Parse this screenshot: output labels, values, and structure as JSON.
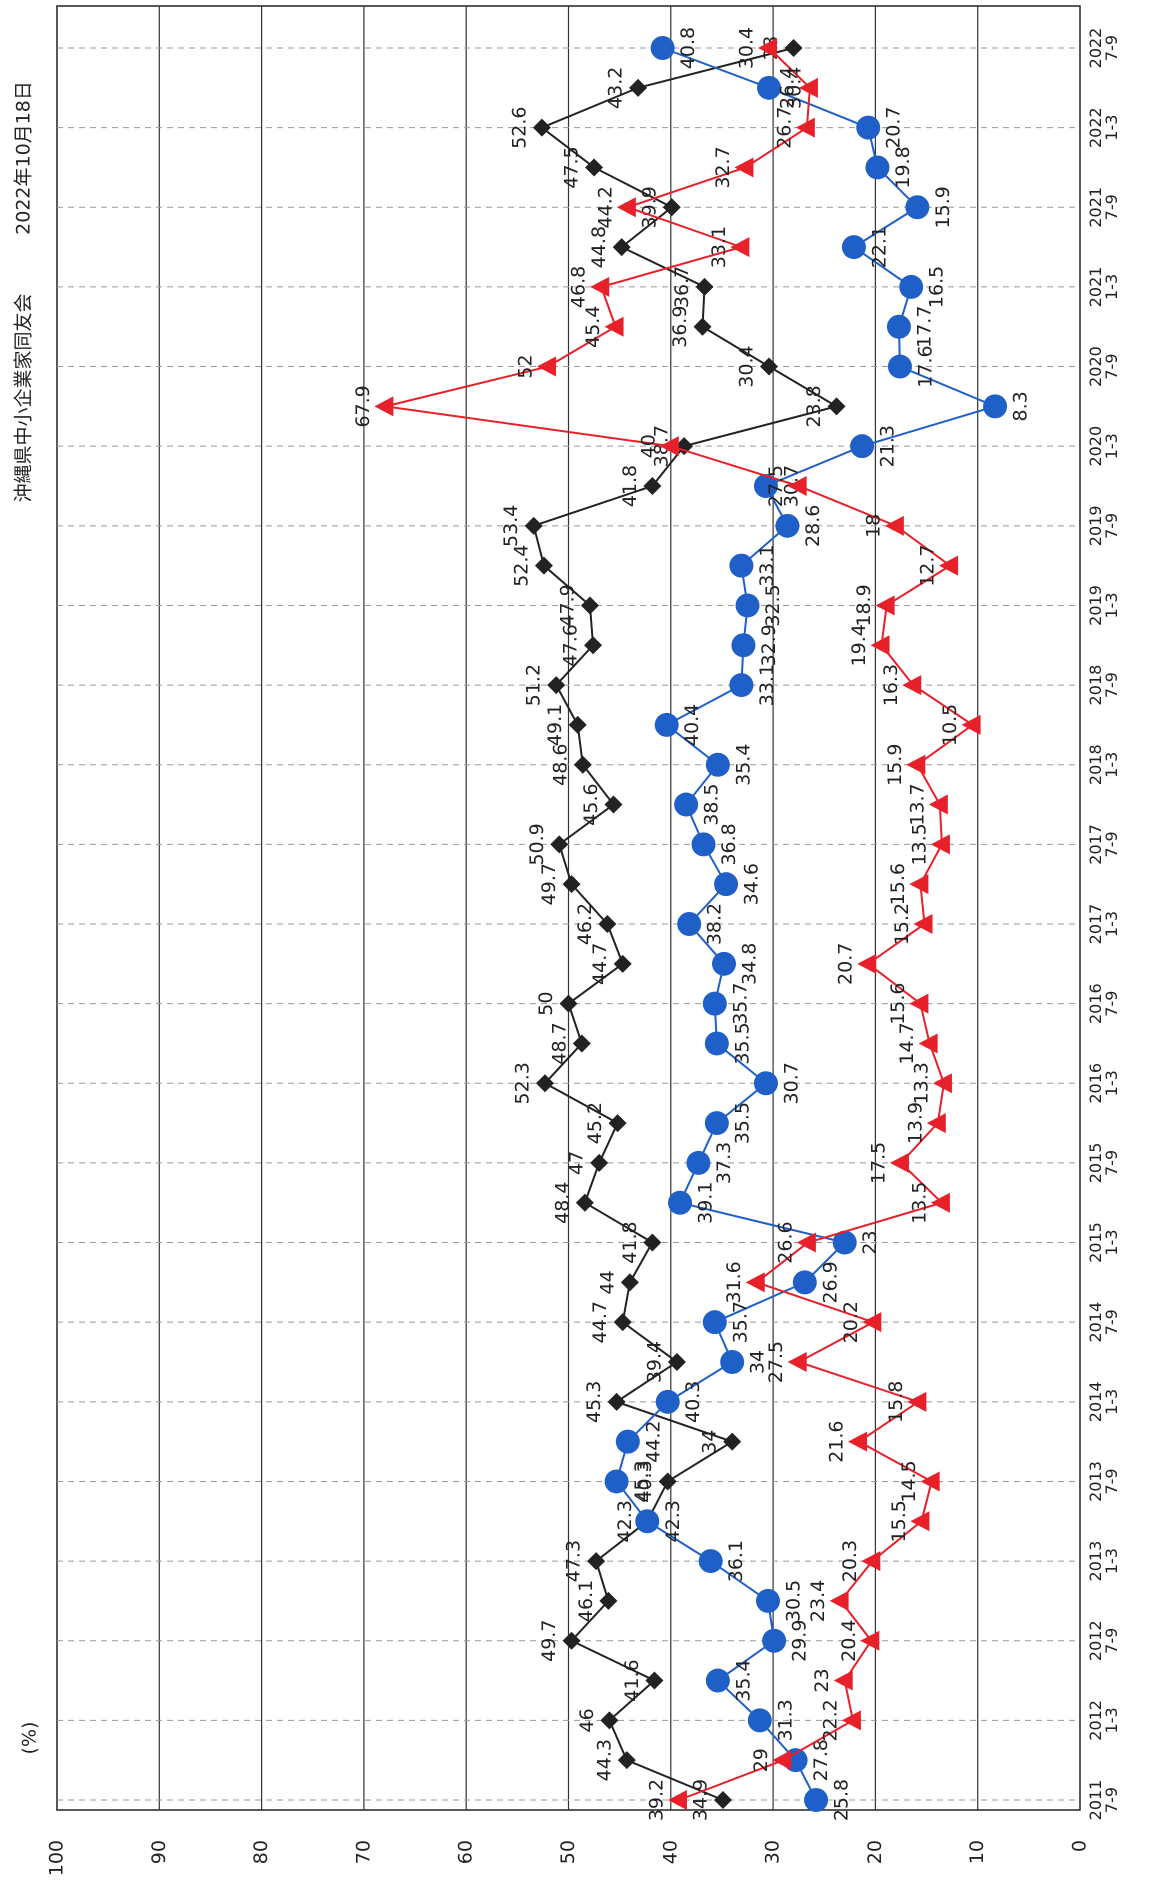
{
  "chart_data": {
    "type": "line",
    "title": "沖縄県中小企業家同友会",
    "subtitle": "2022年10月18日",
    "y_label": "(%)",
    "categories": [
      "2011\n7-9",
      null,
      "2012\n1-3",
      null,
      "2012\n7-9",
      null,
      "2013\n1-3",
      null,
      "2013\n7-9",
      null,
      "2014\n1-3",
      null,
      "2014\n7-9",
      null,
      "2015\n1-3",
      null,
      "2015\n7-9",
      null,
      "2016\n1-3",
      null,
      "2016\n7-9",
      null,
      "2017\n1-3",
      null,
      "2017\n7-9",
      null,
      "2018\n1-3",
      null,
      "2018\n7-9",
      null,
      "2019\n1-3",
      null,
      "2019\n7-9",
      null,
      "2020\n1-3",
      null,
      "2020\n7-9",
      null,
      "2021\n1-3",
      null,
      "2021\n7-9",
      null,
      "2022\n1-3",
      null,
      "2022\n7-9"
    ],
    "series": [
      {
        "color": "#222222",
        "marker": "diamond",
        "values": [
          34.9,
          44.3,
          46.0,
          41.6,
          49.7,
          46.1,
          47.3,
          42.3,
          40.3,
          34.0,
          45.3,
          39.4,
          44.7,
          44.0,
          41.8,
          48.4,
          47.0,
          45.2,
          52.3,
          48.7,
          50.0,
          44.7,
          46.2,
          49.7,
          50.9,
          45.6,
          48.6,
          49.1,
          51.2,
          47.6,
          47.9,
          52.4,
          53.4,
          41.8,
          38.7,
          23.8,
          30.4,
          36.9,
          36.7,
          44.8,
          39.9,
          47.5,
          52.6,
          43.2,
          28.0
        ]
      },
      {
        "color": "#1f5fc8",
        "marker": "circle",
        "values": [
          25.8,
          27.8,
          31.3,
          35.4,
          29.9,
          30.5,
          36.1,
          42.3,
          45.3,
          44.2,
          40.3,
          34.0,
          35.7,
          26.9,
          23.0,
          39.1,
          37.3,
          35.5,
          30.7,
          35.5,
          35.7,
          34.8,
          38.2,
          34.6,
          36.8,
          38.5,
          35.4,
          40.4,
          33.1,
          32.9,
          32.5,
          33.1,
          28.6,
          30.7,
          21.3,
          8.3,
          17.6,
          17.7,
          16.5,
          22.1,
          15.9,
          19.8,
          20.7,
          30.4,
          40.8
        ]
      },
      {
        "color": "#e8202a",
        "marker": "triangle",
        "values": [
          39.2,
          29.0,
          22.2,
          23,
          20.4,
          23.4,
          20.3,
          15.5,
          14.5,
          21.6,
          15.8,
          27.5,
          20.2,
          31.6,
          26.6,
          13.5,
          17.5,
          13.9,
          13.3,
          14.7,
          15.6,
          20.7,
          15.2,
          15.6,
          13.5,
          13.7,
          15.9,
          10.5,
          16.3,
          19.4,
          18.9,
          12.7,
          18.0,
          27.5,
          40.0,
          67.9,
          52.0,
          45.4,
          46.8,
          33.1,
          44.2,
          32.7,
          26.7,
          26.4,
          30.4
        ]
      }
    ],
    "ylim": [
      0,
      100
    ],
    "yticks": [
      0,
      10,
      20,
      30,
      40,
      50,
      60,
      70,
      80,
      90,
      100
    ],
    "grid": true
  }
}
